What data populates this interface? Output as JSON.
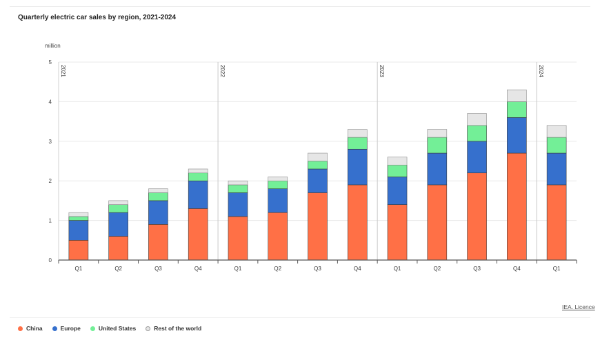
{
  "title": "Quarterly electric car sales by region, 2021-2024",
  "source_link": "IEA. Licence",
  "colors": {
    "China": "#ff7046",
    "Europe": "#3670cd",
    "United States": "#73ef97",
    "Rest of the world": "#e6e6e6"
  },
  "chart_data": {
    "type": "bar",
    "stacked": true,
    "title": "Quarterly electric car sales by region, 2021-2024",
    "ylabel": "million",
    "ylim": [
      0,
      5
    ],
    "yticks": [
      0,
      1,
      2,
      3,
      4,
      5
    ],
    "grid": true,
    "legend_position": "bottom-left",
    "categories": [
      "Q1",
      "Q2",
      "Q3",
      "Q4",
      "Q1",
      "Q2",
      "Q3",
      "Q4",
      "Q1",
      "Q2",
      "Q3",
      "Q4",
      "Q1"
    ],
    "year_groups": [
      {
        "label": "2021",
        "start": 0
      },
      {
        "label": "2022",
        "start": 4
      },
      {
        "label": "2023",
        "start": 8
      },
      {
        "label": "2024",
        "start": 12
      }
    ],
    "series": [
      {
        "name": "China",
        "values": [
          0.5,
          0.6,
          0.9,
          1.3,
          1.1,
          1.2,
          1.7,
          1.9,
          1.4,
          1.9,
          2.2,
          2.7,
          1.9
        ]
      },
      {
        "name": "Europe",
        "values": [
          0.5,
          0.6,
          0.6,
          0.7,
          0.6,
          0.6,
          0.6,
          0.9,
          0.7,
          0.8,
          0.8,
          0.9,
          0.8
        ]
      },
      {
        "name": "United States",
        "values": [
          0.1,
          0.2,
          0.2,
          0.2,
          0.2,
          0.2,
          0.2,
          0.3,
          0.3,
          0.4,
          0.4,
          0.4,
          0.4
        ]
      },
      {
        "name": "Rest of the world",
        "values": [
          0.1,
          0.1,
          0.1,
          0.1,
          0.1,
          0.1,
          0.2,
          0.2,
          0.2,
          0.2,
          0.3,
          0.3,
          0.3
        ]
      }
    ]
  }
}
